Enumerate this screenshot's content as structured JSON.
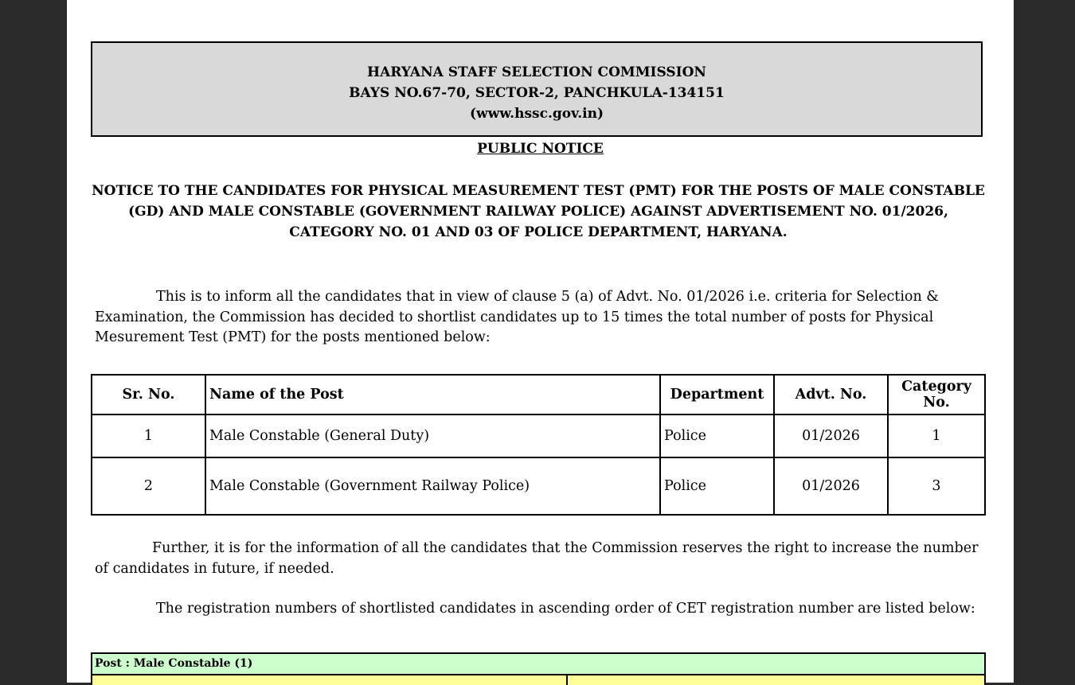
{
  "header": {
    "line1": "HARYANA STAFF SELECTION COMMISSION",
    "line2": "BAYS NO.67-70, SECTOR-2, PANCHKULA-134151",
    "line3": "(www.hssc.gov.in)"
  },
  "public_notice": "PUBLIC NOTICE",
  "subject": "NOTICE TO THE CANDIDATES FOR PHYSICAL MEASUREMENT TEST (PMT) FOR THE POSTS OF MALE CONSTABLE (GD) AND MALE CONSTABLE (GOVERNMENT RAILWAY POLICE) AGAINST ADVERTISEMENT NO. 01/2026, CATEGORY NO. 01 AND 03 OF POLICE DEPARTMENT, HARYANA.",
  "para1": "This is to inform all the candidates that in view of clause 5 (a) of Advt. No. 01/2026 i.e. criteria for Selection & Examination, the Commission has decided to shortlist candidates up to 15 times the total number of posts for Physical Mesurement Test (PMT) for the posts mentioned below:",
  "table": {
    "headers": [
      "Sr. No.",
      "Name of the Post",
      "Department",
      "Advt. No.",
      "Category No."
    ],
    "rows": [
      [
        "1",
        "Male Constable (General Duty)",
        "Police",
        "01/2026",
        "1"
      ],
      [
        "2",
        "Male Constable (Government Railway Police)",
        "Police",
        "01/2026",
        "3"
      ]
    ]
  },
  "para2": "Further, it is for the information of all the candidates that the Commission reserves the right to increase the number of candidates in future, if needed.",
  "para3": "The registration numbers of shortlisted candidates in ascending order of CET registration number are listed below:",
  "post_label": "Post : Male Constable (1)"
}
